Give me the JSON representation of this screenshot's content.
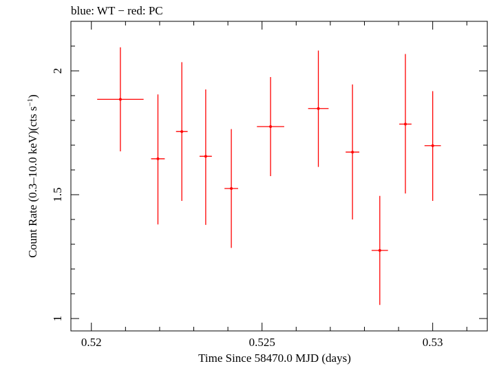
{
  "chart_data": {
    "type": "scatter",
    "title": "blue: WT − red: PC",
    "xlabel": "Time Since 58470.0 MJD (days)",
    "ylabel_main": "Count Rate (0.3–10.0 keV)(cts s",
    "ylabel_sup": "−1",
    "ylabel_end": ")",
    "xlim": [
      0.5194,
      0.5316
    ],
    "ylim": [
      0.95,
      2.2
    ],
    "xticks": [
      0.52,
      0.525,
      0.53
    ],
    "xtick_labels": [
      "0.52",
      "0.525",
      "0.53"
    ],
    "yticks": [
      1,
      1.5,
      2
    ],
    "ytick_labels": [
      "1",
      "1.5",
      "2"
    ],
    "grid": false,
    "series": [
      {
        "color": "#ff0000",
        "points": [
          {
            "x": 0.52085,
            "y": 1.885,
            "xerr": 0.00068,
            "ylo": 1.675,
            "yhi": 2.095
          },
          {
            "x": 0.52195,
            "y": 1.645,
            "xerr": 0.0002,
            "ylo": 1.38,
            "yhi": 1.905
          },
          {
            "x": 0.52265,
            "y": 1.755,
            "xerr": 0.00017,
            "ylo": 1.475,
            "yhi": 2.035
          },
          {
            "x": 0.52335,
            "y": 1.655,
            "xerr": 0.00018,
            "ylo": 1.378,
            "yhi": 1.925
          },
          {
            "x": 0.5241,
            "y": 1.525,
            "xerr": 0.0002,
            "ylo": 1.285,
            "yhi": 1.765
          },
          {
            "x": 0.52525,
            "y": 1.775,
            "xerr": 0.0004,
            "ylo": 1.575,
            "yhi": 1.975
          },
          {
            "x": 0.52665,
            "y": 1.848,
            "xerr": 0.0003,
            "ylo": 1.612,
            "yhi": 2.082
          },
          {
            "x": 0.52765,
            "y": 1.672,
            "xerr": 0.0002,
            "ylo": 1.4,
            "yhi": 1.945
          },
          {
            "x": 0.52845,
            "y": 1.275,
            "xerr": 0.00024,
            "ylo": 1.055,
            "yhi": 1.495
          },
          {
            "x": 0.5292,
            "y": 1.785,
            "xerr": 0.00018,
            "ylo": 1.505,
            "yhi": 2.068
          },
          {
            "x": 0.53,
            "y": 1.698,
            "xerr": 0.00024,
            "ylo": 1.475,
            "yhi": 1.918
          }
        ]
      }
    ]
  }
}
